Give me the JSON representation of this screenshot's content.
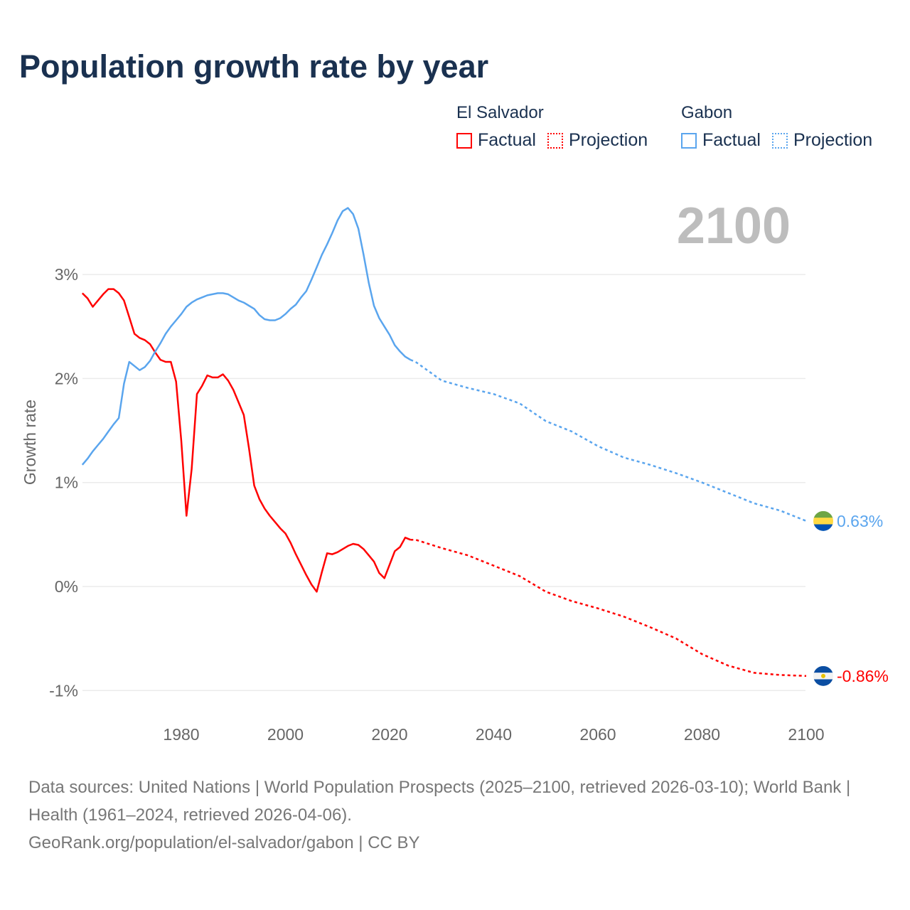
{
  "title": "Population growth rate by year",
  "legend": {
    "groups": [
      {
        "name": "El Salvador",
        "color": "#ff0000",
        "factual": "Factual",
        "projection": "Projection"
      },
      {
        "name": "Gabon",
        "color": "#5aa5ee",
        "factual": "Factual",
        "projection": "Projection"
      }
    ]
  },
  "year_label": "2100",
  "footer": {
    "sources": "Data sources: United Nations | World Population Prospects (2025–2100, retrieved 2026-03-10); World Bank | Health (1961–2024, retrieved 2026-04-06).",
    "credit": "GeoRank.org/population/el-salvador/gabon | CC BY"
  },
  "chart_data": {
    "type": "line",
    "title": "Population growth rate by year",
    "xlabel": "",
    "ylabel": "Growth rate",
    "xlim": [
      1961,
      2100
    ],
    "ylim": [
      -1.2,
      3.8
    ],
    "x_ticks": [
      1980,
      2000,
      2020,
      2040,
      2060,
      2080,
      2100
    ],
    "x_tick_labels": [
      "1980",
      "2000",
      "2020",
      "2040",
      "2060",
      "2080",
      "2100"
    ],
    "y_ticks": [
      -1,
      0,
      1,
      2,
      3
    ],
    "y_tick_labels": [
      "-1%",
      "0%",
      "1%",
      "2%",
      "3%"
    ],
    "grid": true,
    "legend_position": "top-right",
    "series": [
      {
        "name": "El Salvador",
        "color": "#ff0000",
        "end_label": "-0.86%",
        "factual": {
          "x": [
            1961,
            1962,
            1963,
            1964,
            1965,
            1966,
            1967,
            1968,
            1969,
            1970,
            1971,
            1972,
            1973,
            1974,
            1975,
            1976,
            1977,
            1978,
            1979,
            1980,
            1981,
            1982,
            1983,
            1984,
            1985,
            1986,
            1987,
            1988,
            1989,
            1990,
            1991,
            1992,
            1993,
            1994,
            1995,
            1996,
            1997,
            1998,
            1999,
            2000,
            2001,
            2002,
            2003,
            2004,
            2005,
            2006,
            2007,
            2008,
            2009,
            2010,
            2011,
            2012,
            2013,
            2014,
            2015,
            2016,
            2017,
            2018,
            2019,
            2020,
            2021,
            2022,
            2023,
            2024
          ],
          "y": [
            2.82,
            2.77,
            2.69,
            2.75,
            2.81,
            2.86,
            2.86,
            2.82,
            2.75,
            2.59,
            2.43,
            2.39,
            2.37,
            2.33,
            2.25,
            2.18,
            2.16,
            2.16,
            1.97,
            1.4,
            0.68,
            1.13,
            1.85,
            1.93,
            2.03,
            2.01,
            2.01,
            2.04,
            1.98,
            1.89,
            1.77,
            1.65,
            1.33,
            0.97,
            0.84,
            0.75,
            0.68,
            0.62,
            0.56,
            0.51,
            0.42,
            0.31,
            0.21,
            0.11,
            0.02,
            -0.05,
            0.14,
            0.32,
            0.31,
            0.33,
            0.36,
            0.39,
            0.41,
            0.4,
            0.36,
            0.3,
            0.24,
            0.13,
            0.08,
            0.21,
            0.34,
            0.38,
            0.47,
            0.45
          ]
        },
        "projection": {
          "x": [
            2024,
            2025,
            2030,
            2035,
            2040,
            2045,
            2050,
            2055,
            2060,
            2065,
            2070,
            2075,
            2080,
            2085,
            2090,
            2095,
            2100
          ],
          "y": [
            0.45,
            0.45,
            0.37,
            0.3,
            0.2,
            0.1,
            -0.05,
            -0.14,
            -0.21,
            -0.29,
            -0.39,
            -0.5,
            -0.65,
            -0.76,
            -0.83,
            -0.85,
            -0.86
          ]
        }
      },
      {
        "name": "Gabon",
        "color": "#5aa5ee",
        "end_label": "0.63%",
        "factual": {
          "x": [
            1961,
            1962,
            1963,
            1964,
            1965,
            1966,
            1967,
            1968,
            1969,
            1970,
            1971,
            1972,
            1973,
            1974,
            1975,
            1976,
            1977,
            1978,
            1979,
            1980,
            1981,
            1982,
            1983,
            1984,
            1985,
            1986,
            1987,
            1988,
            1989,
            1990,
            1991,
            1992,
            1993,
            1994,
            1995,
            1996,
            1997,
            1998,
            1999,
            2000,
            2001,
            2002,
            2003,
            2004,
            2005,
            2006,
            2007,
            2008,
            2009,
            2010,
            2011,
            2012,
            2013,
            2014,
            2015,
            2016,
            2017,
            2018,
            2019,
            2020,
            2021,
            2022,
            2023,
            2024
          ],
          "y": [
            1.17,
            1.23,
            1.3,
            1.36,
            1.42,
            1.49,
            1.56,
            1.62,
            1.95,
            2.16,
            2.12,
            2.08,
            2.11,
            2.17,
            2.26,
            2.34,
            2.43,
            2.5,
            2.56,
            2.62,
            2.69,
            2.73,
            2.76,
            2.78,
            2.8,
            2.81,
            2.82,
            2.82,
            2.81,
            2.78,
            2.75,
            2.73,
            2.7,
            2.67,
            2.61,
            2.57,
            2.56,
            2.56,
            2.58,
            2.62,
            2.67,
            2.71,
            2.78,
            2.84,
            2.95,
            3.07,
            3.19,
            3.29,
            3.4,
            3.52,
            3.61,
            3.64,
            3.58,
            3.44,
            3.19,
            2.92,
            2.7,
            2.58,
            2.5,
            2.42,
            2.32,
            2.26,
            2.21,
            2.18
          ]
        },
        "projection": {
          "x": [
            2024,
            2025,
            2030,
            2035,
            2040,
            2045,
            2050,
            2055,
            2060,
            2065,
            2070,
            2075,
            2080,
            2085,
            2090,
            2095,
            2100
          ],
          "y": [
            2.18,
            2.16,
            1.98,
            1.91,
            1.85,
            1.76,
            1.59,
            1.49,
            1.35,
            1.24,
            1.17,
            1.09,
            1.0,
            0.9,
            0.8,
            0.73,
            0.63
          ]
        }
      }
    ]
  }
}
